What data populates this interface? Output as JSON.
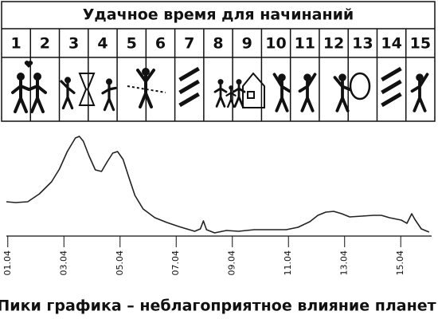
{
  "header": {
    "title": "Удачное время для начинаний",
    "days": [
      "1",
      "2",
      "3",
      "4",
      "5",
      "6",
      "7",
      "8",
      "9",
      "10",
      "11",
      "12",
      "13",
      "14",
      "15"
    ]
  },
  "chart_data": {
    "type": "line",
    "caption": "Пики графика – неблагоприятное влияние планет",
    "x": [
      0.95,
      1.28,
      1.71,
      2.13,
      2.56,
      2.84,
      3.12,
      3.41,
      3.55,
      3.69,
      3.89,
      4.12,
      4.34,
      4.54,
      4.74,
      4.91,
      5.11,
      5.31,
      5.53,
      5.82,
      6.24,
      6.67,
      7.09,
      7.37,
      7.66,
      7.86,
      7.97,
      8.08,
      8.37,
      8.79,
      9.22,
      9.78,
      10.35,
      10.92,
      11.34,
      11.76,
      12.05,
      12.33,
      12.61,
      12.9,
      13.18,
      13.61,
      14.03,
      14.31,
      14.6,
      15.02,
      15.22,
      15.39,
      15.5,
      15.73,
      16.01
    ],
    "series": [
      {
        "color": "#222222",
        "values": [
          43,
          42,
          43,
          53,
          68,
          84,
          106,
          123,
          125,
          119,
          101,
          83,
          81,
          93,
          104,
          106,
          96,
          74,
          51,
          34,
          23,
          17,
          12,
          9,
          6,
          9,
          19,
          8,
          4,
          7,
          6,
          8,
          8,
          8,
          11,
          18,
          26,
          30,
          31,
          28,
          24,
          25,
          26,
          26,
          23,
          20,
          16,
          28,
          21,
          9,
          5
        ]
      }
    ],
    "xlim": [
      0.95,
      16.1
    ],
    "ylim": [
      0,
      130
    ],
    "xticks": [
      {
        "value": 1,
        "label": "01.04"
      },
      {
        "value": 3,
        "label": "03.04"
      },
      {
        "value": 5,
        "label": "05.04"
      },
      {
        "value": 7,
        "label": "07.04"
      },
      {
        "value": 9,
        "label": "09.04"
      },
      {
        "value": 11,
        "label": "11.04"
      },
      {
        "value": 13,
        "label": "13.04"
      },
      {
        "value": 15,
        "label": "15.04"
      }
    ]
  }
}
